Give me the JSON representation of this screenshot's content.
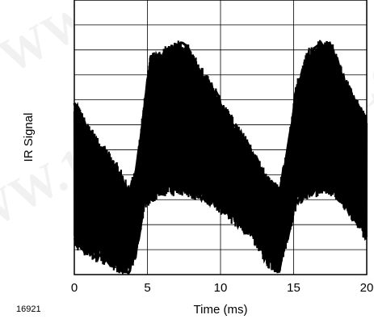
{
  "chart_data": {
    "type": "line",
    "title": "",
    "xlabel": "Time (ms)",
    "ylabel": "IR Signal",
    "xlim": [
      0,
      20
    ],
    "x_ticks": [
      "0",
      "5",
      "10",
      "15",
      "20"
    ],
    "y_tick_labels": "none",
    "grid": true,
    "grid_rows": 11,
    "legend": "none",
    "series_color": "#000000",
    "envelope": {
      "x": [
        0,
        1,
        2,
        3,
        3.7,
        4.2,
        4.8,
        5.2,
        6,
        7,
        7.6,
        8.5,
        9.5,
        10.5,
        11.5,
        12.5,
        13.2,
        14,
        14.6,
        15.2,
        16,
        16.8,
        17.6,
        18.5,
        19.5,
        20
      ],
      "upper": [
        0.62,
        0.52,
        0.45,
        0.38,
        0.3,
        0.36,
        0.62,
        0.78,
        0.8,
        0.83,
        0.83,
        0.75,
        0.67,
        0.58,
        0.5,
        0.41,
        0.34,
        0.3,
        0.45,
        0.68,
        0.8,
        0.83,
        0.83,
        0.7,
        0.6,
        0.55
      ],
      "lower": [
        0.12,
        0.08,
        0.06,
        0.03,
        0.01,
        0.08,
        0.26,
        0.28,
        0.31,
        0.31,
        0.31,
        0.29,
        0.27,
        0.22,
        0.18,
        0.12,
        0.05,
        0.02,
        0.14,
        0.27,
        0.3,
        0.31,
        0.31,
        0.26,
        0.18,
        0.14
      ]
    }
  },
  "figure_code": "16921",
  "watermark_text": "WWW.100Y.COM.TW"
}
